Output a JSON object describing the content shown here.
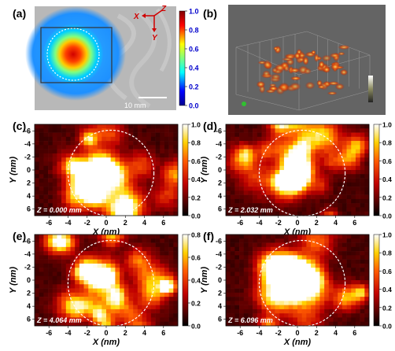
{
  "chart_data": [
    {
      "panel": "(a)",
      "type": "heatmap",
      "description_text": {
        "axes": [
          "X",
          "Z",
          "Y"
        ],
        "scale_bar": "10 mm"
      },
      "colorbar": {
        "ticks": [
          "1.0",
          "0.8",
          "0.6",
          "0.4",
          "0.2",
          "0.0"
        ],
        "range": [
          0,
          1
        ],
        "colormap": "jet"
      }
    },
    {
      "panel": "(b)",
      "type": "heatmap",
      "colorbar": {
        "ticks": [
          "",
          "",
          "",
          "",
          ""
        ]
      }
    },
    {
      "panel": "(c)",
      "type": "heatmap",
      "xlabel": "X (nm)",
      "ylabel": "Y (nm)",
      "xticks": [
        "-6",
        "-4",
        "-2",
        "0",
        "2",
        "4",
        "6"
      ],
      "yticks": [
        "-6",
        "-4",
        "-2",
        "0",
        "2",
        "4",
        "6"
      ],
      "annotation": "Z = 0.000 mm",
      "colorbar": {
        "ticks": [
          "1.0",
          "0.8",
          "0.6",
          "0.4",
          "0.2",
          "0.0"
        ],
        "range": [
          0,
          1
        ],
        "colormap": "hot"
      }
    },
    {
      "panel": "(d)",
      "type": "heatmap",
      "xlabel": "X (nm)",
      "ylabel": "Y (nm)",
      "xticks": [
        "-6",
        "-4",
        "-2",
        "0",
        "2",
        "4",
        "6"
      ],
      "yticks": [
        "-6",
        "-4",
        "-2",
        "0",
        "2",
        "4",
        "6"
      ],
      "annotation": "Z = 2.032 mm",
      "colorbar": {
        "ticks": [
          "1.0",
          "0.8",
          "0.6",
          "0.4",
          "0.2",
          "0.0"
        ],
        "range": [
          0,
          1
        ],
        "colormap": "hot"
      }
    },
    {
      "panel": "(e)",
      "type": "heatmap",
      "xlabel": "X (nm)",
      "ylabel": "Y (nm)",
      "xticks": [
        "-6",
        "-4",
        "-2",
        "0",
        "2",
        "4",
        "6"
      ],
      "yticks": [
        "-6",
        "-4",
        "-2",
        "0",
        "2",
        "4",
        "6"
      ],
      "annotation": "Z = 4.064 mm",
      "colorbar": {
        "ticks": [
          "0.8",
          "0.6",
          "0.4",
          "0.2",
          "0.0"
        ],
        "range": [
          0,
          0.8
        ],
        "colormap": "hot"
      }
    },
    {
      "panel": "(f)",
      "type": "heatmap",
      "xlabel": "X (nm)",
      "ylabel": "Y (nm)",
      "xticks": [
        "-6",
        "-4",
        "-2",
        "0",
        "2",
        "4",
        "6"
      ],
      "yticks": [
        "-6",
        "-4",
        "-2",
        "0",
        "2",
        "4",
        "6"
      ],
      "annotation": "Z = 6.096 mm",
      "colorbar": {
        "ticks": [
          "1.0",
          "0.8",
          "0.6",
          "0.4",
          "0.2",
          "0.0"
        ],
        "range": [
          0,
          1
        ],
        "colormap": "hot"
      }
    }
  ]
}
